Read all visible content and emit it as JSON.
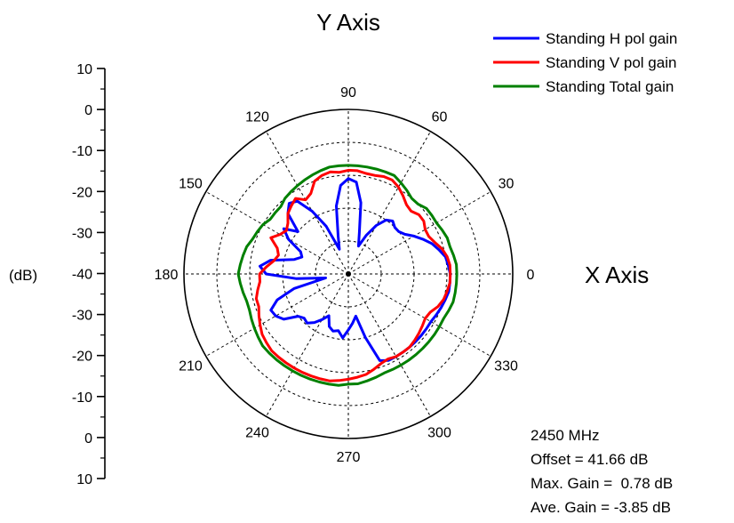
{
  "chart_data": {
    "type": "polar",
    "xlabel": "X Axis",
    "ylabel": "Y Axis",
    "radial_unit": "(dB)",
    "radial_range": [
      -40,
      10
    ],
    "radial_ticks": [
      10,
      0,
      -10,
      -20,
      -30,
      -40,
      -30,
      -20,
      -10,
      0,
      10
    ],
    "angle_ticks": [
      0,
      30,
      60,
      90,
      120,
      150,
      180,
      210,
      240,
      270,
      300,
      330
    ],
    "grid": true,
    "legend_position": "top-right",
    "series": [
      {
        "name": "Standing H pol gain",
        "color": "#0000ff",
        "angles": [
          0,
          5,
          10,
          15,
          20,
          25,
          30,
          35,
          40,
          45,
          50,
          55,
          60,
          65,
          70,
          75,
          80,
          85,
          90,
          95,
          100,
          105,
          110,
          115,
          120,
          125,
          130,
          135,
          140,
          145,
          150,
          155,
          160,
          165,
          170,
          175,
          180,
          185,
          190,
          195,
          200,
          205,
          210,
          215,
          220,
          225,
          230,
          235,
          240,
          245,
          250,
          255,
          260,
          265,
          270,
          275,
          280,
          285,
          290,
          295,
          300,
          305,
          310,
          315,
          320,
          325,
          330,
          335,
          340,
          345,
          350,
          355
        ],
        "values": [
          -9,
          -9.5,
          -10,
          -11.5,
          -13,
          -15,
          -17,
          -19,
          -20,
          -20,
          -19,
          -20,
          -23,
          -27,
          -31,
          -27,
          -18,
          -12,
          -11,
          -13,
          -19,
          -28,
          -32,
          -24,
          -18,
          -13,
          -12,
          -14,
          -20,
          -16,
          -19,
          -24,
          -25,
          -23,
          -16,
          -13,
          -15,
          -24,
          -33,
          -23,
          -17,
          -14,
          -14.5,
          -16,
          -20,
          -21,
          -20.5,
          -22,
          -24,
          -26,
          -23,
          -22,
          -22.5,
          -20.5,
          -23,
          -25,
          -27,
          -20,
          -12,
          -11,
          -11,
          -11,
          -11,
          -11,
          -11,
          -11,
          -11,
          -10.5,
          -10,
          -9.5,
          -9,
          -9
        ]
      },
      {
        "name": "Standing V pol gain",
        "color": "#ff0000",
        "angles": [
          0,
          5,
          10,
          15,
          20,
          25,
          30,
          35,
          40,
          45,
          50,
          55,
          60,
          65,
          70,
          75,
          80,
          85,
          90,
          95,
          100,
          105,
          110,
          115,
          120,
          125,
          130,
          135,
          140,
          145,
          150,
          155,
          160,
          165,
          170,
          175,
          180,
          185,
          190,
          195,
          200,
          205,
          210,
          215,
          220,
          225,
          230,
          235,
          240,
          245,
          250,
          255,
          260,
          265,
          270,
          275,
          280,
          285,
          290,
          295,
          300,
          305,
          310,
          315,
          320,
          325,
          330,
          335,
          340,
          345,
          350,
          355
        ],
        "values": [
          -9,
          -9,
          -9.5,
          -10.5,
          -12,
          -13,
          -13,
          -12,
          -12,
          -13,
          -12.5,
          -11,
          -9.5,
          -8.5,
          -8.5,
          -9,
          -9,
          -8.5,
          -8.5,
          -9,
          -8.5,
          -9,
          -10,
          -13,
          -14,
          -12,
          -13,
          -14,
          -16,
          -17,
          -16,
          -14,
          -17,
          -18,
          -17,
          -15,
          -13,
          -13,
          -12,
          -11,
          -11,
          -10,
          -9,
          -8,
          -7.5,
          -7,
          -7,
          -7,
          -7,
          -7,
          -7,
          -7,
          -7,
          -7.5,
          -8,
          -8.5,
          -9,
          -10,
          -11,
          -11.5,
          -11,
          -11,
          -11,
          -11.5,
          -12,
          -12.5,
          -13,
          -12.5,
          -11,
          -10,
          -9.5,
          -9
        ]
      },
      {
        "name": "Standing Total gain",
        "color": "#008000",
        "angles": [
          0,
          5,
          10,
          15,
          20,
          25,
          30,
          35,
          40,
          45,
          50,
          55,
          60,
          65,
          70,
          75,
          80,
          85,
          90,
          95,
          100,
          105,
          110,
          115,
          120,
          125,
          130,
          135,
          140,
          145,
          150,
          155,
          160,
          165,
          170,
          175,
          180,
          185,
          190,
          195,
          200,
          205,
          210,
          215,
          220,
          225,
          230,
          235,
          240,
          245,
          250,
          255,
          260,
          265,
          270,
          275,
          280,
          285,
          290,
          295,
          300,
          305,
          310,
          315,
          320,
          325,
          330,
          335,
          340,
          345,
          350,
          355
        ],
        "values": [
          -7,
          -7,
          -7.5,
          -8,
          -8,
          -8.5,
          -9,
          -9,
          -9,
          -10,
          -10,
          -9,
          -8,
          -7,
          -7,
          -7,
          -7,
          -7,
          -7,
          -7,
          -7,
          -7.5,
          -8,
          -8.5,
          -9,
          -9.5,
          -10,
          -11,
          -11,
          -11,
          -10,
          -9.5,
          -9,
          -8,
          -7.5,
          -7,
          -6.5,
          -7,
          -7.5,
          -8,
          -8,
          -7.5,
          -7,
          -6.5,
          -6,
          -6,
          -6,
          -6,
          -6,
          -6,
          -6,
          -6,
          -6,
          -6,
          -6.5,
          -6.5,
          -7,
          -7.5,
          -8,
          -8,
          -8,
          -8,
          -8,
          -8,
          -8,
          -8,
          -8,
          -8,
          -7.5,
          -7,
          -7,
          -7
        ]
      }
    ],
    "annotations": [
      "2450 MHz",
      "Offset = 41.66 dB",
      "Max. Gain =  0.78 dB",
      "Ave. Gain = -3.85 dB"
    ]
  }
}
